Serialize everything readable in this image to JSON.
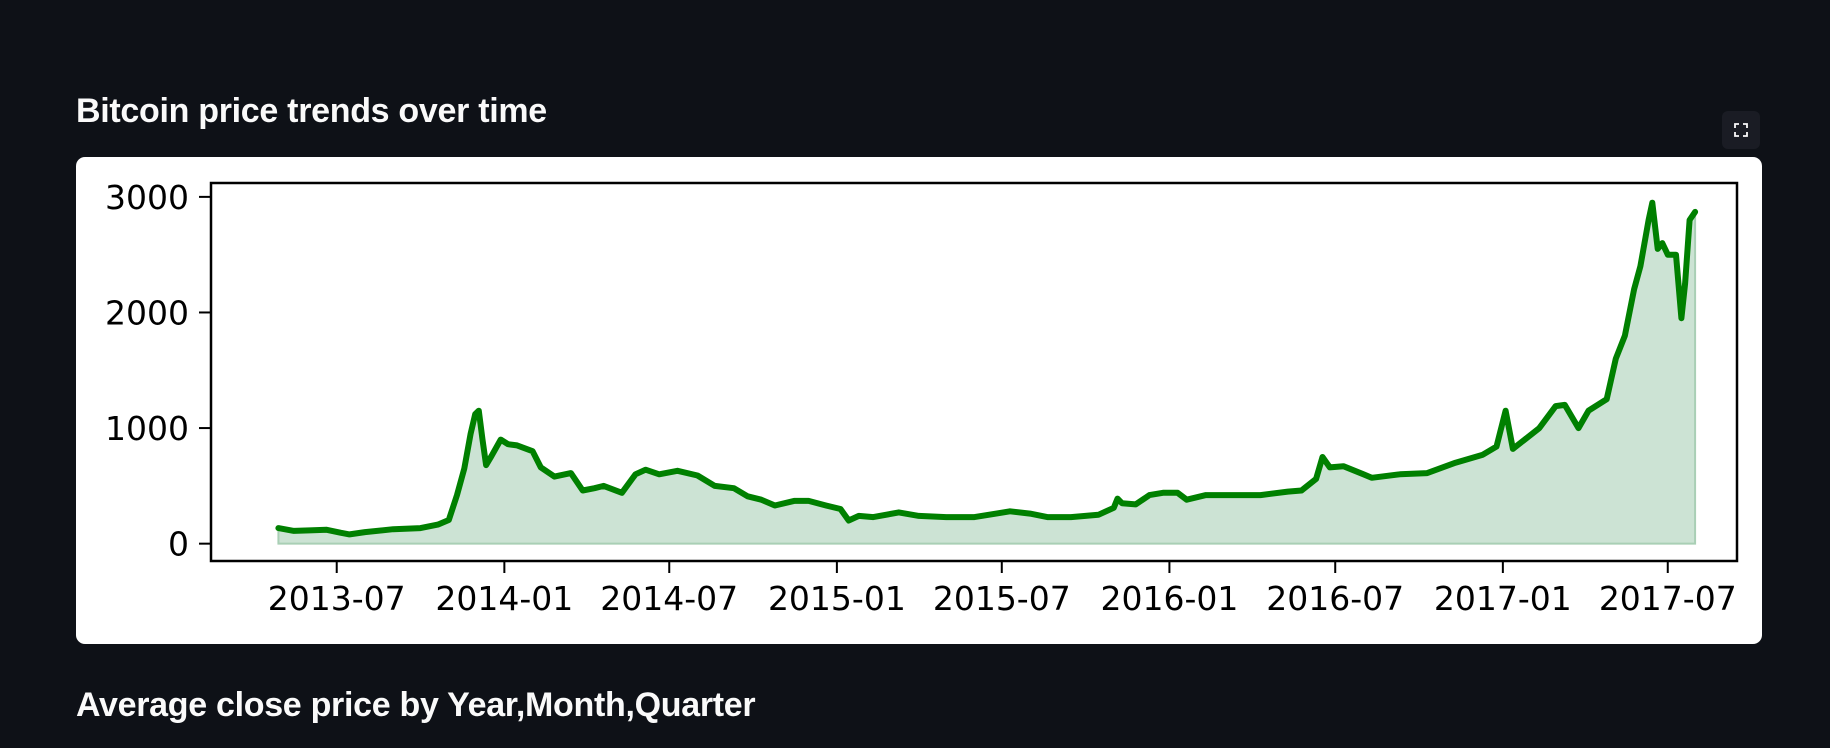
{
  "headings": {
    "chart_section": "Bitcoin price trends over time",
    "next_section": "Average close price by Year,Month,Quarter"
  },
  "icons": {
    "fullscreen": "fullscreen-icon"
  },
  "colors": {
    "background": "#0e1117",
    "line": "#008000",
    "fill": "#cce3d4",
    "heading_text": "#fafafa"
  },
  "chart_data": {
    "type": "area",
    "title": "",
    "xlabel": "",
    "ylabel": "",
    "xlim": [
      "2013-02-13",
      "2017-09-15"
    ],
    "ylim": [
      -150,
      3120
    ],
    "grid": false,
    "xticks": [
      "2013-07",
      "2014-01",
      "2014-07",
      "2015-01",
      "2015-07",
      "2016-01",
      "2016-07",
      "2017-01",
      "2017-07"
    ],
    "yticks": [
      0,
      1000,
      2000,
      3000
    ],
    "series": [
      {
        "x": [
          "2013-04-28",
          "2013-05-15",
          "2013-06-01",
          "2013-06-20",
          "2013-07-05",
          "2013-07-15",
          "2013-08-01",
          "2013-09-01",
          "2013-10-01",
          "2013-10-20",
          "2013-11-01",
          "2013-11-10",
          "2013-11-18",
          "2013-11-25",
          "2013-11-30",
          "2013-12-04",
          "2013-12-08",
          "2013-12-12",
          "2013-12-18",
          "2013-12-28",
          "2014-01-05",
          "2014-01-15",
          "2014-02-01",
          "2014-02-10",
          "2014-02-25",
          "2014-03-15",
          "2014-03-28",
          "2014-04-10",
          "2014-04-20",
          "2014-05-10",
          "2014-05-25",
          "2014-06-05",
          "2014-06-20",
          "2014-07-10",
          "2014-08-01",
          "2014-08-20",
          "2014-09-10",
          "2014-09-25",
          "2014-10-10",
          "2014-10-25",
          "2014-11-15",
          "2014-12-01",
          "2014-12-20",
          "2015-01-05",
          "2015-01-14",
          "2015-01-25",
          "2015-02-10",
          "2015-03-10",
          "2015-04-01",
          "2015-05-01",
          "2015-06-01",
          "2015-06-25",
          "2015-07-10",
          "2015-08-01",
          "2015-08-20",
          "2015-09-15",
          "2015-10-15",
          "2015-11-01",
          "2015-11-05",
          "2015-11-10",
          "2015-11-25",
          "2015-12-10",
          "2015-12-25",
          "2016-01-10",
          "2016-01-20",
          "2016-02-10",
          "2016-03-10",
          "2016-04-10",
          "2016-05-10",
          "2016-05-25",
          "2016-06-10",
          "2016-06-17",
          "2016-06-25",
          "2016-07-10",
          "2016-08-01",
          "2016-08-10",
          "2016-09-10",
          "2016-10-10",
          "2016-11-10",
          "2016-12-10",
          "2016-12-25",
          "2017-01-04",
          "2017-01-12",
          "2017-01-25",
          "2017-02-10",
          "2017-02-28",
          "2017-03-10",
          "2017-03-25",
          "2017-04-05",
          "2017-04-25",
          "2017-05-05",
          "2017-05-15",
          "2017-05-25",
          "2017-06-01",
          "2017-06-10",
          "2017-06-14",
          "2017-06-20",
          "2017-06-25",
          "2017-07-01",
          "2017-07-10",
          "2017-07-16",
          "2017-07-20",
          "2017-07-25",
          "2017-07-31"
        ],
        "y": [
          135,
          110,
          115,
          120,
          95,
          80,
          100,
          125,
          135,
          165,
          205,
          420,
          650,
          950,
          1120,
          1150,
          900,
          680,
          760,
          900,
          860,
          850,
          800,
          660,
          580,
          610,
          460,
          480,
          500,
          440,
          600,
          640,
          600,
          630,
          590,
          500,
          480,
          410,
          380,
          330,
          370,
          370,
          330,
          300,
          200,
          240,
          230,
          270,
          240,
          230,
          230,
          260,
          280,
          260,
          230,
          230,
          250,
          310,
          390,
          350,
          340,
          420,
          440,
          440,
          380,
          420,
          420,
          420,
          450,
          460,
          560,
          750,
          660,
          670,
          600,
          570,
          600,
          610,
          700,
          770,
          840,
          1150,
          820,
          900,
          1000,
          1190,
          1200,
          1000,
          1150,
          1250,
          1600,
          1800,
          2200,
          2400,
          2800,
          2950,
          2550,
          2600,
          2500,
          2500,
          1950,
          2250,
          2800,
          2870
        ]
      }
    ]
  }
}
